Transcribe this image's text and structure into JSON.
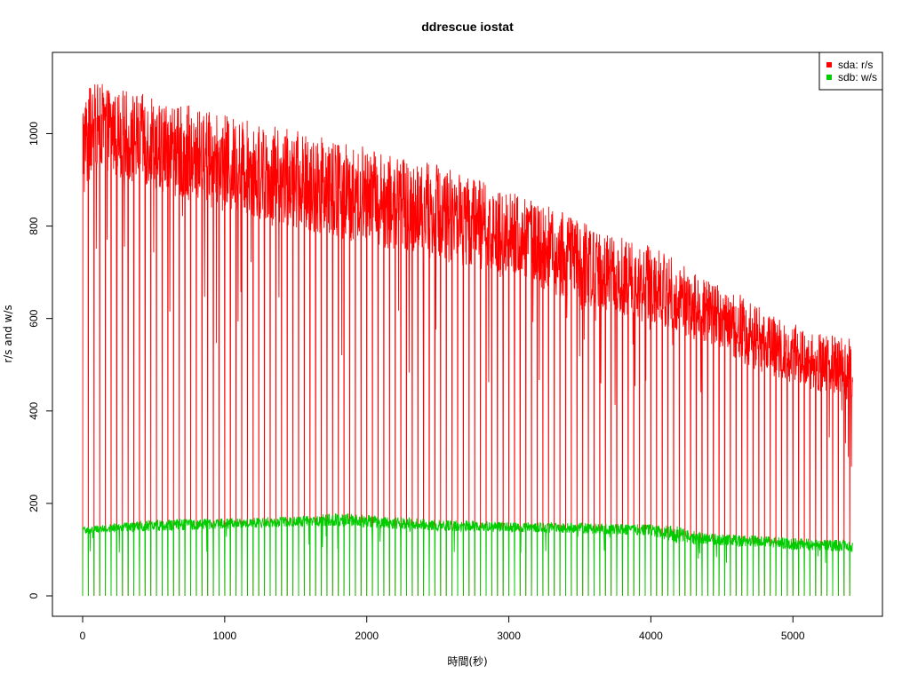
{
  "chart_data": {
    "type": "line",
    "title": "ddrescue iostat",
    "xlabel": "時間(秒)",
    "ylabel": "r/s and w/s",
    "xlim": [
      0,
      5420
    ],
    "ylim": [
      0,
      1120
    ],
    "x_ticks": [
      "0",
      "1000",
      "2000",
      "3000",
      "4000",
      "5000"
    ],
    "y_ticks": [
      "0",
      "200",
      "400",
      "600",
      "800",
      "1000"
    ],
    "grid": false,
    "legend_position": "top-right",
    "series": [
      {
        "name": "sda: r/s",
        "color": "#ff0000",
        "envelope_x": [
          0,
          100,
          300,
          500,
          700,
          1000,
          1300,
          1600,
          1800,
          2000,
          2300,
          2600,
          2800,
          3000,
          3200,
          3400,
          3600,
          3800,
          4000,
          4200,
          4400,
          4600,
          4800,
          5000,
          5200,
          5420
        ],
        "envelope_high": [
          1090,
          1110,
          1095,
          1080,
          1065,
          1040,
          1020,
          1000,
          985,
          975,
          945,
          930,
          900,
          875,
          850,
          830,
          800,
          775,
          760,
          725,
          685,
          660,
          620,
          590,
          570,
          555
        ],
        "envelope_low": [
          850,
          930,
          900,
          880,
          860,
          830,
          810,
          790,
          770,
          760,
          740,
          720,
          700,
          690,
          670,
          640,
          610,
          600,
          590,
          570,
          540,
          510,
          480,
          460,
          440,
          420
        ],
        "dip_period": 40,
        "dip_min": 0
      },
      {
        "name": "sdb: w/s",
        "color": "#00cc00",
        "envelope_x": [
          0,
          500,
          1000,
          1500,
          1800,
          2000,
          2500,
          3000,
          3500,
          4000,
          4200,
          4400,
          4800,
          5000,
          5420
        ],
        "envelope_high": [
          150,
          165,
          168,
          172,
          180,
          175,
          165,
          160,
          158,
          155,
          150,
          135,
          130,
          125,
          120
        ],
        "envelope_low": [
          135,
          140,
          145,
          150,
          150,
          148,
          140,
          138,
          135,
          130,
          110,
          110,
          105,
          100,
          95
        ],
        "dip_period": 40,
        "dip_min": 0
      }
    ]
  }
}
